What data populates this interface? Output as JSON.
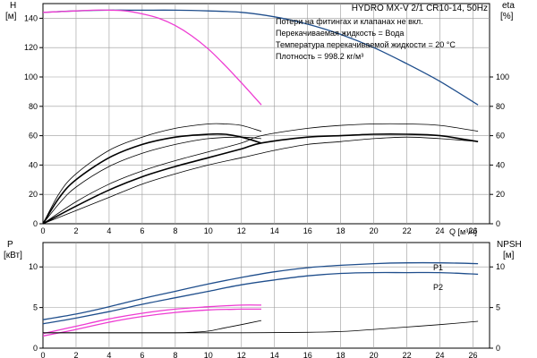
{
  "title": "HYDRO MX-V 2/1 CR10-14, 50Hz",
  "notes": [
    "Потери на фитингах и клапанах не вкл.",
    "Перекачиваемая жидкость = Вода",
    "Температура перекачиваемой жидкости = 20 °C",
    "Плотность = 998.2 кг/м³"
  ],
  "colors": {
    "blue": "#1f4e8c",
    "magenta": "#ee3bd2",
    "black": "#000000",
    "grid": "#9a9a9a"
  },
  "chart_data": [
    {
      "type": "line",
      "panel": "top",
      "xlabel": "Q [м³/ч]",
      "x_ticks": [
        0,
        2,
        4,
        6,
        8,
        10,
        12,
        14,
        16,
        18,
        20,
        22,
        24,
        26
      ],
      "xlim": [
        0,
        27
      ],
      "y_left": {
        "label_line1": "H",
        "label_line2": "[м]",
        "ticks": [
          0,
          20,
          40,
          60,
          80,
          100,
          120,
          140
        ],
        "ylim": [
          0,
          150
        ]
      },
      "y_right": {
        "label_line1": "eta",
        "label_line2": "[%]",
        "ticks": [
          0,
          20,
          40,
          60,
          80,
          100
        ],
        "ylim": [
          0,
          150
        ]
      },
      "series": [
        {
          "role": "head-2-pumps",
          "color": "blue",
          "axis": "left",
          "x": [
            0,
            2,
            4,
            6,
            8,
            10,
            12,
            14,
            16,
            18,
            20,
            22,
            24,
            26.3
          ],
          "y": [
            144,
            145,
            145.5,
            145.5,
            145.5,
            145,
            144,
            141,
            136,
            129,
            120,
            109,
            97,
            81
          ]
        },
        {
          "role": "head-1-pump",
          "color": "magenta",
          "axis": "left",
          "x": [
            0,
            1,
            2,
            3,
            4,
            5,
            6,
            7,
            8,
            9,
            10,
            11,
            12,
            13.2
          ],
          "y": [
            144,
            144.5,
            145,
            145.5,
            145.5,
            145,
            143,
            140,
            135,
            128,
            119,
            108,
            96,
            81
          ]
        },
        {
          "role": "eta-1-pump-upper",
          "color": "black",
          "axis": "right",
          "x": [
            0,
            1,
            2,
            4,
            6,
            8,
            10,
            11,
            12,
            13.2
          ],
          "y": [
            0,
            21,
            34,
            50,
            59,
            65,
            68,
            68,
            67,
            63
          ]
        },
        {
          "role": "eta-1-pump",
          "color": "black",
          "axis": "right",
          "bold": true,
          "x": [
            0,
            1,
            2,
            4,
            6,
            8,
            10,
            11,
            12,
            13.2
          ],
          "y": [
            0,
            18,
            30,
            45,
            54,
            59,
            61,
            61,
            59,
            55
          ]
        },
        {
          "role": "eta-1-pump-lower",
          "color": "black",
          "axis": "right",
          "x": [
            0,
            1,
            2,
            4,
            6,
            8,
            10,
            12,
            13.2
          ],
          "y": [
            0,
            14,
            25,
            39,
            48,
            54,
            58,
            59,
            58
          ]
        },
        {
          "role": "eta-2-pumps-upper",
          "color": "black",
          "axis": "right",
          "x": [
            0,
            2,
            4,
            6,
            8,
            10,
            12,
            13.2,
            16,
            18,
            20,
            22,
            24,
            26.3
          ],
          "y": [
            0,
            15,
            27,
            36,
            43,
            49,
            55,
            60,
            65,
            67,
            68,
            68,
            67,
            63
          ]
        },
        {
          "role": "eta-2-pumps",
          "color": "black",
          "axis": "right",
          "bold": true,
          "x": [
            0,
            2,
            4,
            6,
            8,
            10,
            12,
            13.2,
            16,
            18,
            20,
            22,
            24,
            26.3
          ],
          "y": [
            0,
            12,
            23,
            32,
            39,
            45,
            51,
            55,
            59,
            60,
            61,
            61,
            60,
            56
          ]
        },
        {
          "role": "eta-2-pumps-lower",
          "color": "black",
          "axis": "right",
          "x": [
            0,
            2,
            4,
            6,
            8,
            10,
            12,
            14,
            16,
            18,
            20,
            22,
            24,
            26.3
          ],
          "y": [
            0,
            9,
            18,
            27,
            34,
            40,
            45,
            50,
            54,
            56,
            58,
            59,
            58,
            56
          ]
        }
      ]
    },
    {
      "type": "line",
      "panel": "bottom",
      "x_ticks": [
        0,
        2,
        4,
        6,
        8,
        10,
        12,
        14,
        16,
        18,
        20,
        22,
        24,
        26
      ],
      "xlim": [
        0,
        27
      ],
      "y_left": {
        "label_line1": "P",
        "label_line2": "[кВт]",
        "ticks": [
          0,
          5,
          10
        ],
        "ylim": [
          0,
          13
        ]
      },
      "y_right": {
        "label_line1": "NPSH",
        "label_line2": "[м]",
        "ticks": [
          0,
          5,
          10
        ],
        "ylim": [
          0,
          13
        ]
      },
      "series": [
        {
          "name": "P1",
          "color": "blue",
          "axis": "left",
          "x": [
            0,
            2,
            4,
            6,
            8,
            10,
            12,
            14,
            16,
            18,
            20,
            22,
            24,
            26.3
          ],
          "y": [
            3.5,
            4.2,
            5.1,
            6.1,
            7.0,
            7.9,
            8.7,
            9.4,
            9.9,
            10.2,
            10.4,
            10.5,
            10.5,
            10.4
          ]
        },
        {
          "name": "P2",
          "color": "blue",
          "axis": "left",
          "x": [
            0,
            2,
            4,
            6,
            8,
            10,
            12,
            14,
            16,
            18,
            20,
            22,
            24,
            26.3
          ],
          "y": [
            3.0,
            3.7,
            4.5,
            5.4,
            6.2,
            7.0,
            7.8,
            8.4,
            8.9,
            9.2,
            9.3,
            9.3,
            9.3,
            9.1
          ]
        },
        {
          "role": "P1-1-pump",
          "color": "magenta",
          "axis": "left",
          "x": [
            0,
            2,
            4,
            6,
            8,
            10,
            12,
            13.2
          ],
          "y": [
            1.8,
            2.7,
            3.6,
            4.3,
            4.8,
            5.1,
            5.3,
            5.3
          ]
        },
        {
          "role": "P2-1-pump",
          "color": "magenta",
          "axis": "left",
          "x": [
            0,
            2,
            4,
            6,
            8,
            10,
            12,
            13.2
          ],
          "y": [
            1.5,
            2.3,
            3.2,
            3.9,
            4.4,
            4.7,
            4.8,
            4.8
          ]
        },
        {
          "role": "NPSH-1-pump",
          "color": "black",
          "axis": "right",
          "x": [
            0,
            2,
            4,
            6,
            8,
            9,
            10,
            11,
            12,
            13.2
          ],
          "y": [
            1.9,
            1.9,
            1.9,
            1.9,
            1.9,
            1.95,
            2.1,
            2.5,
            2.9,
            3.4
          ]
        },
        {
          "role": "NPSH-2-pumps",
          "color": "black",
          "axis": "right",
          "x": [
            0,
            4,
            8,
            12,
            16,
            18,
            20,
            22,
            24,
            26.3
          ],
          "y": [
            1.9,
            1.9,
            1.9,
            1.9,
            1.95,
            2.05,
            2.3,
            2.6,
            2.9,
            3.3
          ]
        }
      ]
    }
  ]
}
